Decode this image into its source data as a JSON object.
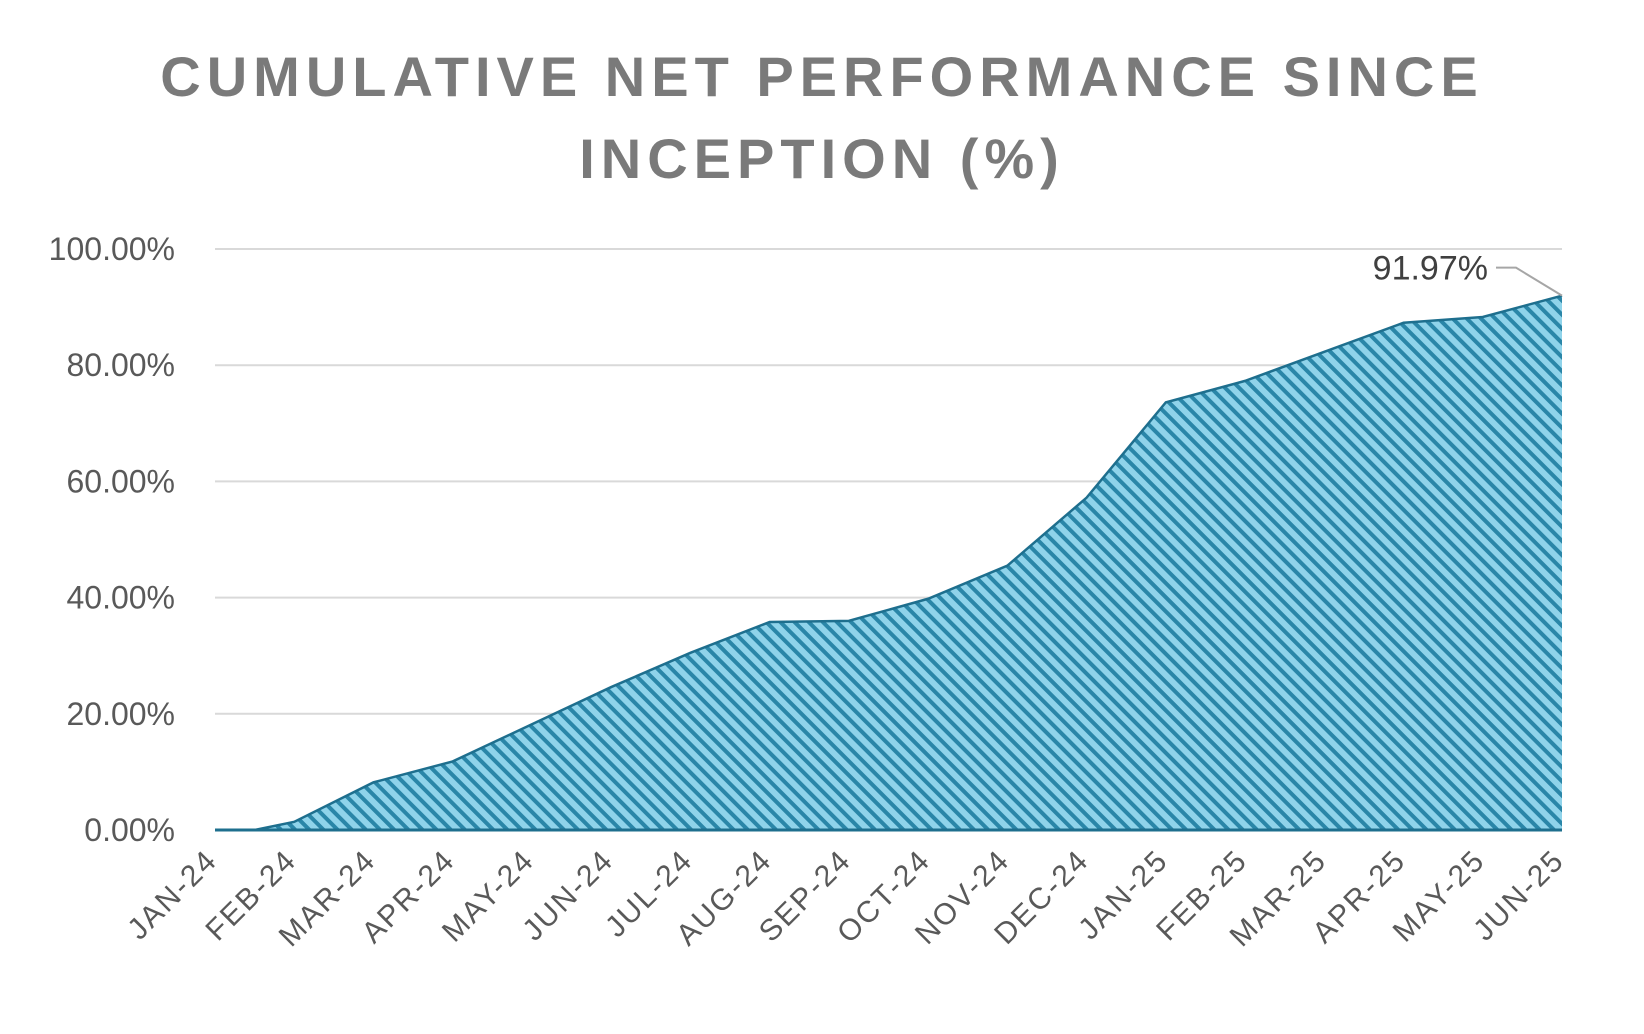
{
  "chart_data": {
    "type": "area",
    "title_lines": [
      "CUMULATIVE NET PERFORMANCE SINCE",
      "INCEPTION (%)"
    ],
    "categories": [
      "JAN-24",
      "FEB-24",
      "MAR-24",
      "APR-24",
      "MAY-24",
      "JUN-24",
      "JUL-24",
      "AUG-24",
      "SEP-24",
      "OCT-24",
      "NOV-24",
      "DEC-24",
      "JAN-25",
      "FEB-25",
      "MAR-25",
      "APR-25",
      "MAY-25",
      "JUN-25"
    ],
    "x": [
      0,
      0.5,
      1,
      2,
      3,
      4,
      5,
      6,
      7,
      8,
      9,
      10,
      11,
      12,
      13,
      14,
      15,
      16,
      17
    ],
    "values": [
      0.0,
      0.0,
      1.4,
      8.2,
      11.8,
      18.2,
      24.6,
      30.5,
      35.8,
      36.0,
      39.8,
      45.5,
      57.2,
      73.6,
      77.3,
      82.3,
      87.3,
      88.3,
      91.97
    ],
    "ylim": [
      0,
      100
    ],
    "yticks": [
      "0.00%",
      "20.00%",
      "40.00%",
      "60.00%",
      "80.00%",
      "100.00%"
    ],
    "ytick_values": [
      0,
      20,
      40,
      60,
      80,
      100
    ],
    "grid": true,
    "data_label": "91.97%",
    "colors": {
      "fill": "#2f8fb0",
      "fill_light": "#8fd3ea",
      "edge": "#1e6f8e",
      "grid": "#d9d9d9",
      "title": "#7a7a7a",
      "ticks": "#595959"
    }
  }
}
